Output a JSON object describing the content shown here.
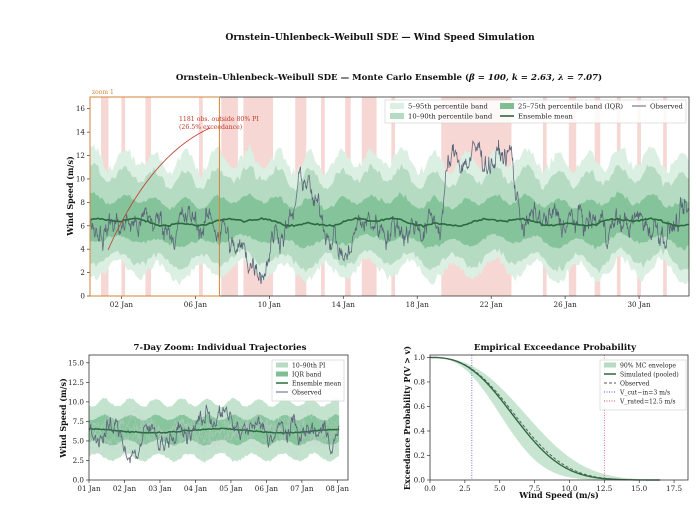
{
  "figure": {
    "suptitle": "Ornstein–Uhlenbeck–Weibull SDE — Wind Speed Simulation"
  },
  "colors": {
    "band_5_95": "#dcefe3",
    "band_10_90": "#b5dcc2",
    "band_iqr": "#7dbf93",
    "mean_line": "#2b6a3e",
    "observed_line": "#5a6478",
    "exceedance_shade": "#f3c9c4",
    "zoom_box": "#d4833b",
    "annotation": "#c0392b",
    "v_cutin": "#4a5fc1",
    "v_rated": "#d24f6c"
  },
  "chart_data": [
    {
      "id": "main",
      "type": "area",
      "title_prefix": "Ornstein–Uhlenbeck–Weibull SDE — Monte Carlo Ensemble (",
      "title_params": "β = 100, k = 2.63, λ = 7.07",
      "title_suffix": ")",
      "xlabel": "",
      "ylabel": "Wind Speed (m/s)",
      "xlim_days": [
        0.3,
        32.7
      ],
      "ylim": [
        0,
        17
      ],
      "xticks": [
        {
          "day": 2,
          "label": "02 Jan"
        },
        {
          "day": 6,
          "label": "06 Jan"
        },
        {
          "day": 10,
          "label": "10 Jan"
        },
        {
          "day": 14,
          "label": "14 Jan"
        },
        {
          "day": 18,
          "label": "18 Jan"
        },
        {
          "day": 22,
          "label": "22 Jan"
        },
        {
          "day": 26,
          "label": "26 Jan"
        },
        {
          "day": 30,
          "label": "30 Jan"
        }
      ],
      "yticks": [
        0,
        2,
        4,
        6,
        8,
        10,
        12,
        14,
        16
      ],
      "ensemble_mean_level": 6.3,
      "observed_mean_level": 6.2,
      "legend": {
        "position": "upper-right",
        "entries": [
          "5–95th percentile band",
          "25–75th percentile band (IQR)",
          "Observed",
          "10–90th percentile band",
          "Ensemble mean"
        ]
      },
      "zoom_label": "zoom 1",
      "zoom_window_days": [
        0.3,
        7.3
      ],
      "annotation_line1": "1181 obs. outside 80% PI",
      "annotation_line2": "(26.5% exceedance)",
      "exceedance_intervals_days": [
        [
          0.9,
          1.3
        ],
        [
          2.0,
          2.2
        ],
        [
          3.3,
          3.6
        ],
        [
          6.2,
          6.4
        ],
        [
          7.4,
          8.3
        ],
        [
          8.6,
          10.2
        ],
        [
          11.4,
          12.0
        ],
        [
          12.8,
          13.0
        ],
        [
          14.1,
          14.4
        ],
        [
          15.0,
          15.8
        ],
        [
          16.6,
          16.8
        ],
        [
          19.3,
          23.1
        ],
        [
          24.8,
          25.0
        ],
        [
          26.2,
          26.6
        ],
        [
          27.6,
          27.9
        ],
        [
          28.8,
          29.0
        ],
        [
          29.9,
          30.1
        ],
        [
          31.3,
          31.5
        ]
      ]
    },
    {
      "id": "zoom",
      "type": "line",
      "title": "7-Day Zoom: Individual Trajectories",
      "xlabel": "",
      "ylabel": "Wind Speed (m/s)",
      "xlim_days": [
        1,
        8.3
      ],
      "ylim": [
        0,
        16
      ],
      "xticks": [
        {
          "day": 1,
          "label": "01 Jan"
        },
        {
          "day": 2,
          "label": "02 Jan"
        },
        {
          "day": 3,
          "label": "03 Jan"
        },
        {
          "day": 4,
          "label": "04 Jan"
        },
        {
          "day": 5,
          "label": "05 Jan"
        },
        {
          "day": 6,
          "label": "06 Jan"
        },
        {
          "day": 7,
          "label": "07 Jan"
        },
        {
          "day": 8,
          "label": "08 Jan"
        }
      ],
      "yticks": [
        "0.0",
        "2.5",
        "5.0",
        "7.5",
        "10.0",
        "12.5",
        "15.0"
      ],
      "band_10_90": [
        2.9,
        9.9
      ],
      "band_iqr": [
        4.8,
        8.0
      ],
      "ensemble_mean_level": 6.3,
      "legend": {
        "position": "upper-right",
        "entries": [
          "10–90th PI",
          "IQR band",
          "Ensemble mean",
          "Observed"
        ]
      }
    },
    {
      "id": "exceedance",
      "type": "line",
      "title": "Empirical Exceedance Probability",
      "xlabel": "Wind Speed (m/s)",
      "ylabel": "Exceedance Probability P(V > v)",
      "xlim": [
        0,
        18.5
      ],
      "ylim": [
        0,
        1.02
      ],
      "xticks": [
        "0.0",
        "2.5",
        "5.0",
        "7.5",
        "10.0",
        "12.5",
        "15.0",
        "17.5"
      ],
      "yticks": [
        "0.0",
        "0.2",
        "0.4",
        "0.6",
        "0.8",
        "1.0"
      ],
      "weibull_k": 2.63,
      "weibull_lambda": 7.07,
      "envelope_lambda": [
        6.0,
        8.2
      ],
      "observed_lambda": 7.25,
      "v_cutin": 3,
      "v_rated": 12.5,
      "legend": {
        "position": "upper-right",
        "entries": [
          "90% MC envelope",
          "Simulated (pooled)",
          "Observed",
          "V_cut−in=3 m/s",
          "V_rated=12.5 m/s"
        ]
      }
    }
  ]
}
